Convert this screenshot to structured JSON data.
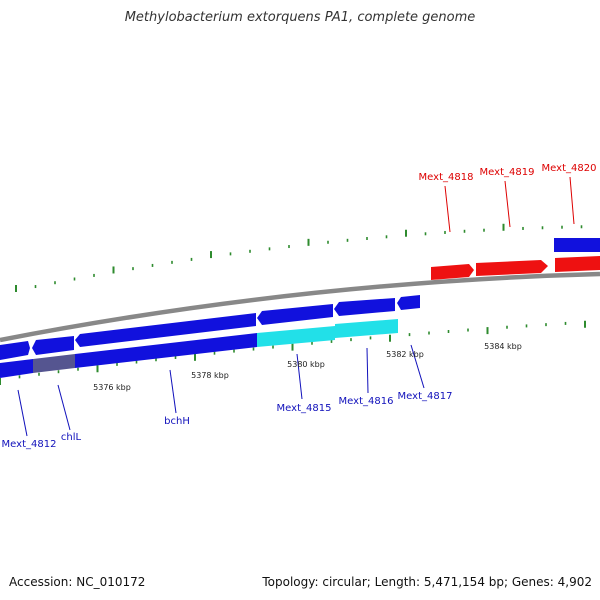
{
  "title": "Methylobacterium extorquens PA1, complete genome",
  "footer": {
    "accession": "Accession: NC_010172",
    "summary": "Topology: circular; Length: 5,471,154 bp; Genes: 4,902"
  },
  "colors": {
    "forward_gene": "#ee1111",
    "forward_label": "#dd0000",
    "reverse_gene": "#1111dd",
    "reverse_label": "#1111bb",
    "highlight_gene": "#22e0e8",
    "dimmed_gene": "#555590",
    "backbone": "#888888",
    "tick": "#2e8b2e"
  },
  "scale_labels": [
    "5376 kbp",
    "5378 kbp",
    "5380 kbp",
    "5382 kbp",
    "5384 kbp"
  ],
  "forward_gene_labels": [
    "Mext_4818",
    "Mext_4819",
    "Mext_4820"
  ],
  "reverse_gene_labels": [
    "Mext_4812",
    "chlL",
    "bchH",
    "Mext_4815",
    "Mext_4816",
    "Mext_4817"
  ]
}
